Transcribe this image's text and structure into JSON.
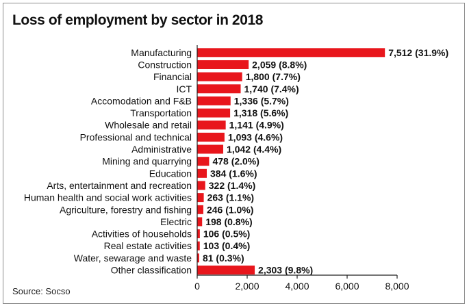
{
  "chart_data": {
    "type": "bar",
    "orientation": "horizontal",
    "title": "Loss of employment by sector in 2018",
    "source": "Source: Socso",
    "bar_color": "#e8161c",
    "xlim": [
      0,
      8000
    ],
    "xticks": [
      "0",
      "2,000",
      "4,000",
      "6,000",
      "8,000"
    ],
    "xtick_values": [
      0,
      2000,
      4000,
      6000,
      8000
    ],
    "grid": false,
    "categories": [
      "Manufacturing",
      "Construction",
      "Financial",
      "ICT",
      "Accomodation and F&B",
      "Transportation",
      "Wholesale and retail",
      "Professional and technical",
      "Administrative",
      "Mining and quarrying",
      "Education",
      "Arts, entertainment and recreation",
      "Human health and social work activities",
      "Agriculture, forestry and fishing",
      "Electric",
      "Activities of households",
      "Real estate activities",
      "Water, sewarage and waste",
      "Other classification"
    ],
    "values": [
      7512,
      2059,
      1800,
      1740,
      1336,
      1318,
      1141,
      1093,
      1042,
      478,
      384,
      322,
      263,
      246,
      198,
      106,
      103,
      81,
      2303
    ],
    "value_labels": [
      "7,512",
      "2,059",
      "1,800",
      "1,740",
      "1,336",
      "1,318",
      "1,141",
      "1,093",
      "1,042",
      "478",
      "384",
      "322",
      "263",
      "246",
      "198",
      "106",
      "103",
      "81",
      "2,303"
    ],
    "percent_labels": [
      "(31.9%)",
      "(8.8%)",
      "(7.7%)",
      "(7.4%)",
      "(5.7%)",
      "(5.6%)",
      "(4.9%)",
      "(4.6%)",
      "(4.4%)",
      "(2.0%)",
      "(1.6%)",
      "(1.4%)",
      "(1.1%)",
      "(1.0%)",
      "(0.8%)",
      "(0.5%)",
      "(0.4%)",
      "(0.3%)",
      "(9.8%)"
    ]
  }
}
